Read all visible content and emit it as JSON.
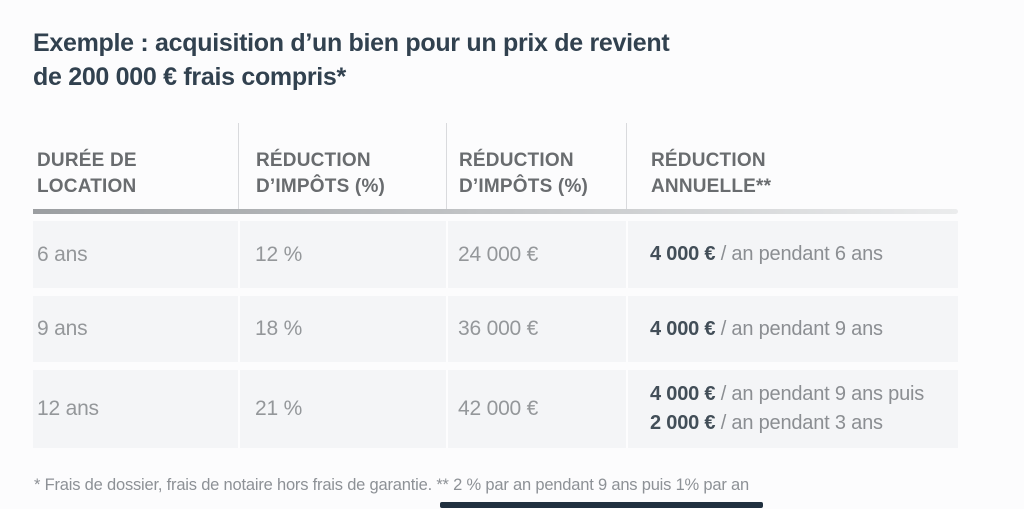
{
  "title": {
    "line1": "Exemple : acquisition d’un bien pour un prix de revient",
    "line2": "de 200 000 € frais compris*"
  },
  "table": {
    "headers": [
      {
        "line1": "DURÉE DE",
        "line2": "LOCATION"
      },
      {
        "line1": "RÉDUCTION",
        "line2": "D’IMPÔTS (%)"
      },
      {
        "line1": "RÉDUCTION",
        "line2": "D’IMPÔTS (%)"
      },
      {
        "line1": "RÉDUCTION",
        "line2": "ANNUELLE**"
      }
    ],
    "rows": [
      {
        "duration": "6 ans",
        "reduction_pct": "12 %",
        "reduction_eur": "24 000 €",
        "annual": [
          {
            "amount": "4 000 €",
            "rest": " / an pendant 6 ans"
          }
        ]
      },
      {
        "duration": "9 ans",
        "reduction_pct": "18 %",
        "reduction_eur": "36 000 €",
        "annual": [
          {
            "amount": "4 000 €",
            "rest": " / an pendant 9 ans"
          }
        ]
      },
      {
        "duration": "12 ans",
        "reduction_pct": "21 %",
        "reduction_eur": "42 000 €",
        "annual": [
          {
            "amount": "4 000 €",
            "rest": " / an pendant 9 ans puis"
          },
          {
            "amount": "2 000 €",
            "rest": " / an pendant 3 ans"
          }
        ]
      }
    ]
  },
  "footnote": "* Frais de dossier, frais de notaire hors frais de garantie. ** 2 % par an pendant 9 ans puis 1% par an",
  "colors": {
    "background": "#fcfcfd",
    "title_text": "#31414f",
    "header_text": "#696c6f",
    "cell_text": "#94979a",
    "bold_amount_text": "#424e58",
    "annual_rest_text": "#8b8e92",
    "row_background": "#f4f5f7",
    "column_divider": "#d9dadd",
    "header_rule_start": "#9b9ea1",
    "header_rule_end": "#ebeced",
    "footnote_text": "#8d9196",
    "bottom_bar": "#20303f"
  }
}
